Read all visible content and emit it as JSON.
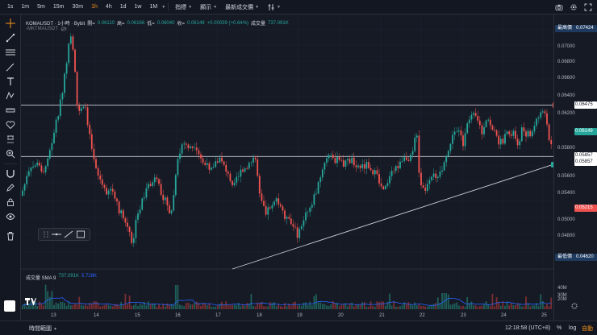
{
  "toolbar": {
    "timeframes": [
      "1s",
      "1m",
      "5m",
      "15m",
      "30m",
      "1h",
      "4h",
      "1d",
      "1w",
      "1M"
    ],
    "active_timeframe": "1h",
    "menus": [
      "指標",
      "顯示",
      "最新成交價"
    ],
    "accent": "#f7931a"
  },
  "legend": {
    "symbol": "KOMAUSDT · 1小時 · Bybit",
    "open_label": "開=",
    "open": "0.06110",
    "high_label": "高=",
    "high": "0.06166",
    "low_label": "低=",
    "low": "0.06040",
    "close_label": "收=",
    "close": "0.06149",
    "change": "+0.00039 (+0.64%)",
    "volume_label": "成交量",
    "volume": "737.091K",
    "ma_label": "-MKTMAUSDT"
  },
  "volume_legend": {
    "label": "成交量 SMA 9",
    "v1": "737.091K",
    "v2": "5.728K"
  },
  "price_axis": {
    "ticks": [
      "0.07000",
      "0.06800",
      "0.06600",
      "0.06400",
      "0.06200",
      "0.06000",
      "0.05800",
      "0.05600",
      "0.05400",
      "0.05200",
      "0.05000",
      "0.04800"
    ],
    "high_badge": "最高價",
    "high_value": "0.07424",
    "low_badge": "最低價",
    "low_value": "0.04620",
    "line1": "0.06475",
    "current": "0.06149",
    "line2a": "0.05857",
    "line2b": "0.05857",
    "red_label": "0.05215",
    "vol_ticks": [
      "40M",
      "30M",
      "20M"
    ]
  },
  "dates": [
    "13",
    "14",
    "15",
    "16",
    "17",
    "18",
    "19",
    "20",
    "21",
    "22",
    "23",
    "24",
    "25"
  ],
  "bottom": {
    "range": "時間範圍",
    "clock": "12:18:58 (UTC+8)",
    "pct": "%",
    "log": "log",
    "auto": "自動"
  },
  "colors": {
    "up": "#26a69a",
    "down": "#ef5350",
    "line": "#d1d4dc",
    "bg": "#161a25"
  }
}
